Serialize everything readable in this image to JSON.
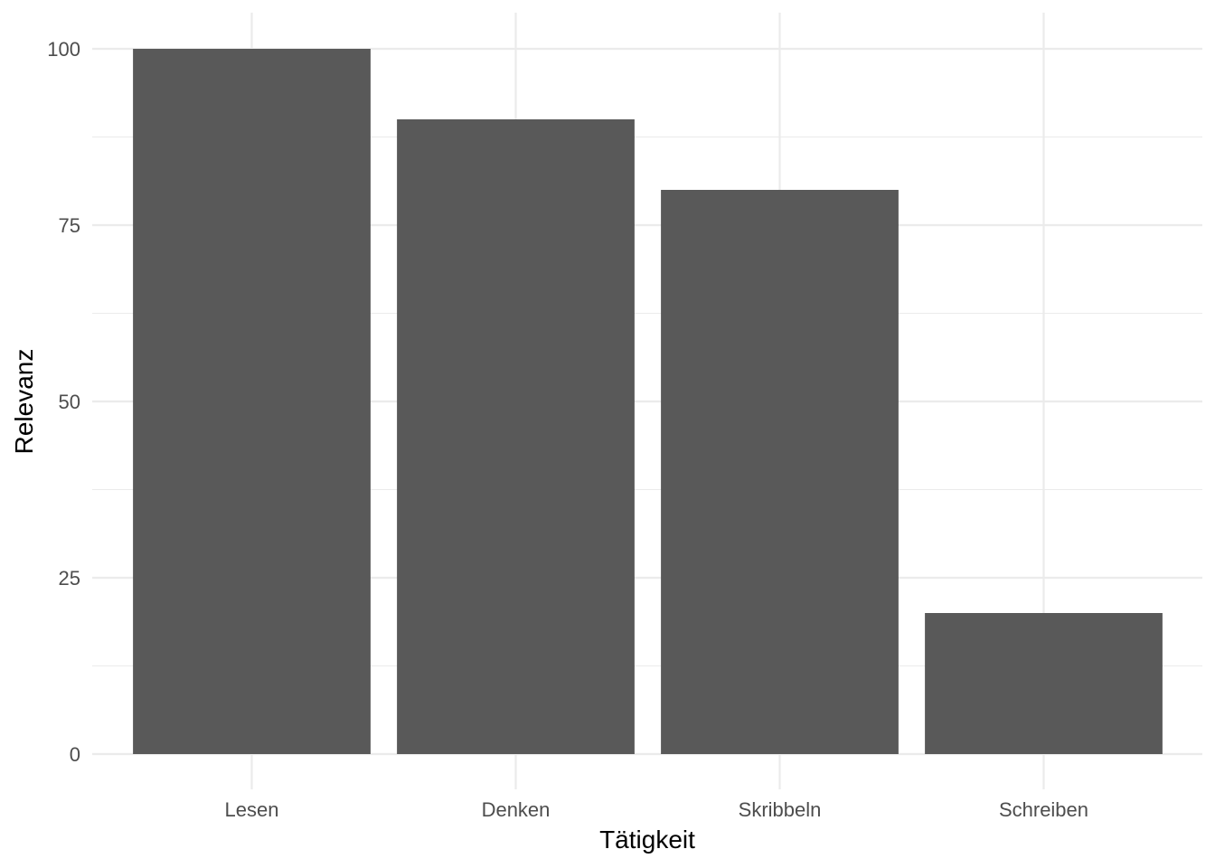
{
  "colors": {
    "bar_fill": "#595959",
    "grid": "#ebebeb",
    "tick_text": "#4d4d4d",
    "axis_title_text": "#000000",
    "background": "#ffffff"
  },
  "chart_data": {
    "type": "bar",
    "categories": [
      "Lesen",
      "Denken",
      "Skribbeln",
      "Schreiben"
    ],
    "values": [
      100,
      90,
      80,
      20
    ],
    "xlabel": "Tätigkeit",
    "ylabel": "Relevanz",
    "ylim": [
      0,
      100
    ],
    "yticks": [
      0,
      25,
      50,
      75,
      100
    ],
    "grid": true,
    "legend": "none"
  }
}
